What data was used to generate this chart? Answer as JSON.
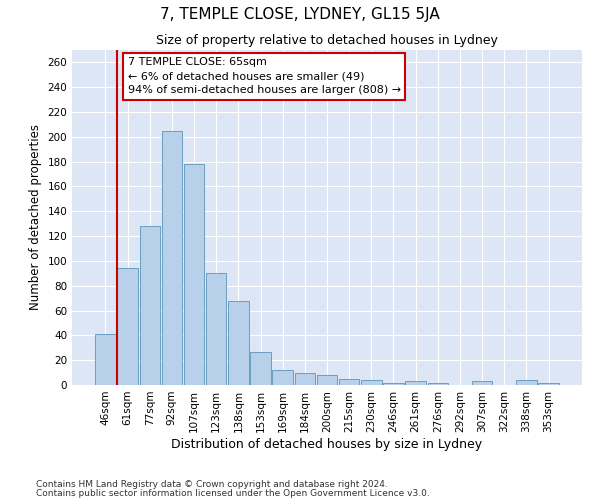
{
  "title": "7, TEMPLE CLOSE, LYDNEY, GL15 5JA",
  "subtitle": "Size of property relative to detached houses in Lydney",
  "xlabel": "Distribution of detached houses by size in Lydney",
  "ylabel": "Number of detached properties",
  "categories": [
    "46sqm",
    "61sqm",
    "77sqm",
    "92sqm",
    "107sqm",
    "123sqm",
    "138sqm",
    "153sqm",
    "169sqm",
    "184sqm",
    "200sqm",
    "215sqm",
    "230sqm",
    "246sqm",
    "261sqm",
    "276sqm",
    "292sqm",
    "307sqm",
    "322sqm",
    "338sqm",
    "353sqm"
  ],
  "values": [
    41,
    94,
    128,
    205,
    178,
    90,
    68,
    27,
    12,
    10,
    8,
    5,
    4,
    2,
    3,
    2,
    0,
    3,
    0,
    4,
    2
  ],
  "bar_color": "#b8d0ea",
  "bar_edge_color": "#6a9fc0",
  "vline_color": "#cc0000",
  "annotation_text": "7 TEMPLE CLOSE: 65sqm\n← 6% of detached houses are smaller (49)\n94% of semi-detached houses are larger (808) →",
  "annotation_box_color": "white",
  "annotation_box_edge_color": "#cc0000",
  "ylim": [
    0,
    270
  ],
  "yticks": [
    0,
    20,
    40,
    60,
    80,
    100,
    120,
    140,
    160,
    180,
    200,
    220,
    240,
    260
  ],
  "background_color": "#dce6f5",
  "grid_color": "white",
  "footer_line1": "Contains HM Land Registry data © Crown copyright and database right 2024.",
  "footer_line2": "Contains public sector information licensed under the Open Government Licence v3.0.",
  "title_fontsize": 11,
  "subtitle_fontsize": 9,
  "xlabel_fontsize": 9,
  "ylabel_fontsize": 8.5,
  "tick_fontsize": 7.5,
  "footer_fontsize": 6.5,
  "annotation_fontsize": 8
}
